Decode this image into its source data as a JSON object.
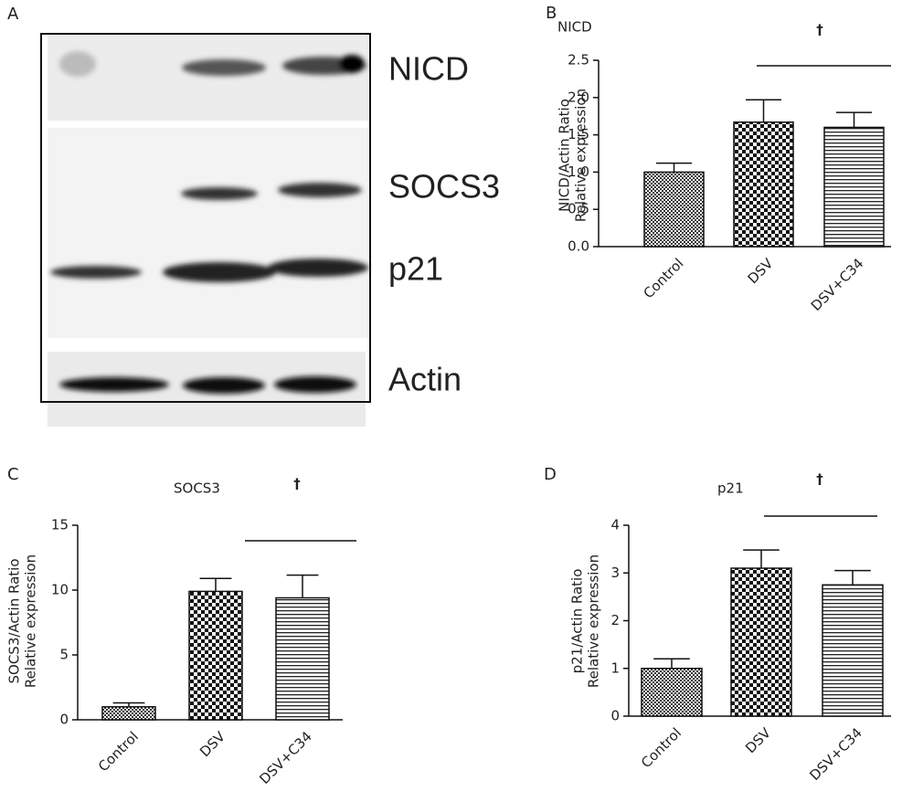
{
  "blot": {
    "panel_label": "A",
    "labels": [
      "NICD",
      "SOCS3",
      "p21",
      "Actin"
    ]
  },
  "chart_data": [
    {
      "type": "bar",
      "panel_label": "B",
      "title": "NICD",
      "ylabel": [
        "NICD/Actin Ratio",
        "Relative expression"
      ],
      "categories": [
        "Control",
        "DSV",
        "DSV+C34"
      ],
      "values": [
        1.0,
        1.67,
        1.6
      ],
      "errors": [
        0.12,
        0.3,
        0.2
      ],
      "bar_patterns": [
        "fine-check",
        "checker",
        "h-stripes"
      ],
      "annotation": "†",
      "ylim": [
        0,
        2.5
      ],
      "yticks": [
        {
          "value": 0,
          "label": "0.0"
        },
        0.5,
        {
          "value": 1,
          "label": "1.0"
        },
        1.5,
        {
          "value": 2,
          "label": "2.0"
        },
        2.5
      ]
    },
    {
      "type": "bar",
      "panel_label": "C",
      "title": "SOCS3",
      "ylabel": [
        "SOCS3/Actin Ratio",
        "Relative expression"
      ],
      "categories": [
        "Control",
        "DSV",
        "DSV+C34"
      ],
      "values": [
        1.0,
        9.9,
        9.4
      ],
      "errors": [
        0.3,
        1.0,
        1.75
      ],
      "bar_patterns": [
        "fine-check",
        "checker",
        "h-stripes"
      ],
      "annotation": "†",
      "ylim": [
        0,
        15
      ],
      "yticks": [
        0,
        5,
        10,
        15
      ]
    },
    {
      "type": "bar",
      "panel_label": "D",
      "title": "p21",
      "ylabel": [
        "p21/Actin Ratio",
        "Relative expression"
      ],
      "categories": [
        "Control",
        "DSV",
        "DSV+C34"
      ],
      "values": [
        1.0,
        3.1,
        2.75
      ],
      "errors": [
        0.2,
        0.38,
        0.3
      ],
      "bar_patterns": [
        "fine-check",
        "checker",
        "h-stripes"
      ],
      "annotation": "†",
      "ylim": [
        0,
        4
      ],
      "yticks": [
        0,
        1,
        2,
        3,
        4
      ]
    }
  ]
}
